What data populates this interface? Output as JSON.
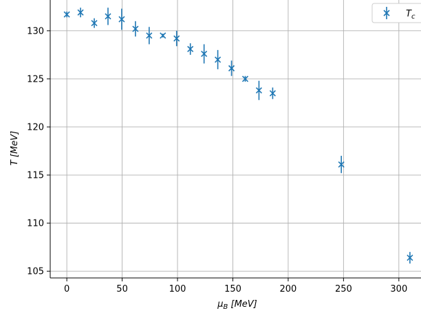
{
  "chart_data": {
    "type": "scatter",
    "title": "",
    "xlabel": "μ_B [MeV]",
    "ylabel": "T [MeV]",
    "xlim": [
      -15,
      320
    ],
    "ylim": [
      104.3,
      133.2
    ],
    "xticks": [
      0,
      50,
      100,
      150,
      200,
      250,
      300
    ],
    "yticks": [
      105,
      110,
      115,
      120,
      125,
      130
    ],
    "grid": true,
    "legend_position": "top-right",
    "color": "#1f77b4",
    "series": [
      {
        "name": "T_c",
        "marker": "x",
        "x": [
          0,
          12.4,
          24.8,
          37.2,
          49.6,
          62,
          74.4,
          86.8,
          99.2,
          111.6,
          124,
          136.4,
          148.8,
          161.2,
          173.6,
          186,
          248,
          310
        ],
        "y": [
          131.7,
          131.9,
          130.8,
          131.5,
          131.2,
          130.2,
          129.5,
          129.5,
          129.2,
          128.1,
          127.6,
          127.0,
          126.1,
          125.0,
          123.8,
          123.5,
          116.1,
          106.4
        ],
        "yerr": [
          0.3,
          0.5,
          0.5,
          0.9,
          1.1,
          0.8,
          0.9,
          0.2,
          0.8,
          0.6,
          1.0,
          1.0,
          0.8,
          0.3,
          1.0,
          0.6,
          0.9,
          0.6
        ]
      }
    ]
  }
}
